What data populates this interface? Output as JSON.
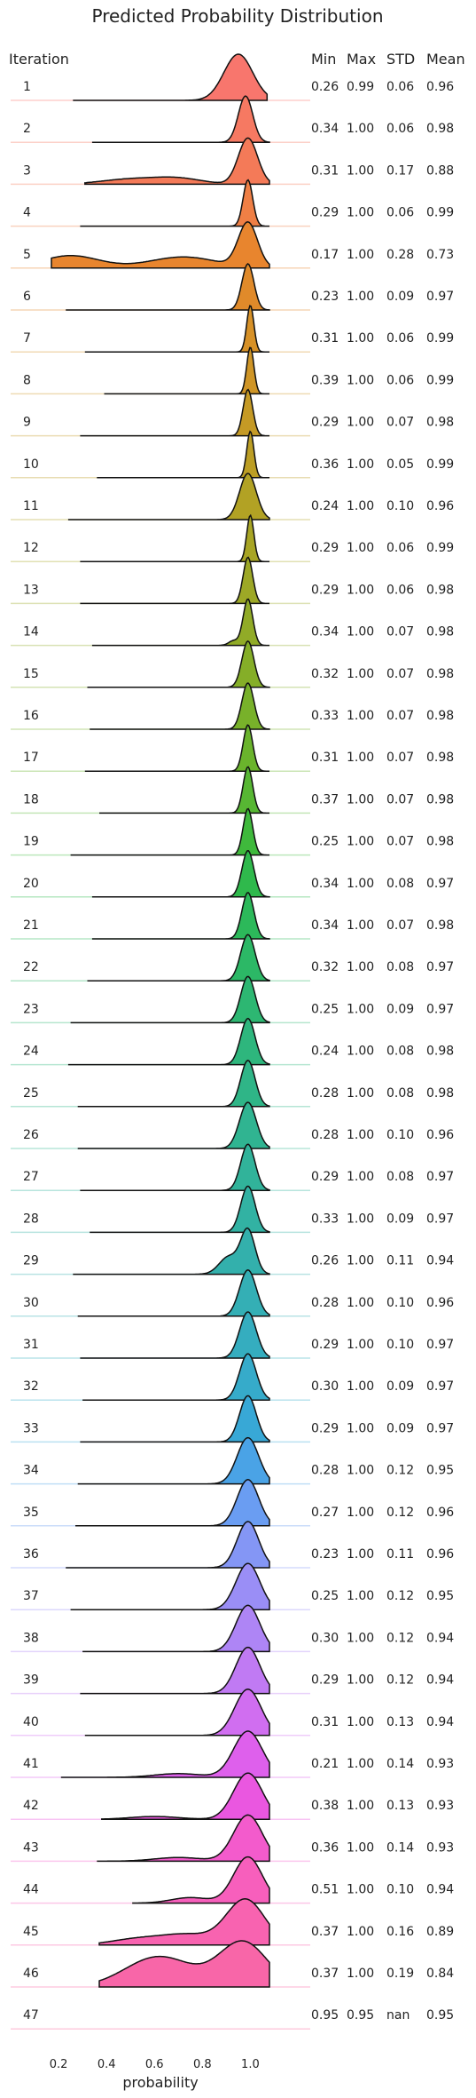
{
  "chart_data": {
    "type": "ridgeline",
    "title": "Predicted Probability Distribution",
    "row_header": "Iteration",
    "column_headers": [
      "Min",
      "Max",
      "STD",
      "Mean"
    ],
    "xlabel": "probability",
    "x_ticks": [
      "0.2",
      "0.4",
      "0.6",
      "0.8",
      "1.0"
    ],
    "xlim": [
      0.0,
      1.25
    ],
    "grid": false,
    "rows": [
      {
        "label": "1",
        "min": "0.26",
        "max": "0.99",
        "std": "0.06",
        "mean": "0.96",
        "color": "#f8766d",
        "shape": [
          [
            0.95,
            0.06,
            1.0
          ]
        ]
      },
      {
        "label": "2",
        "min": "0.34",
        "max": "1.00",
        "std": "0.06",
        "mean": "0.98",
        "color": "#f67962",
        "shape": [
          [
            0.98,
            0.03,
            1.0
          ]
        ]
      },
      {
        "label": "3",
        "min": "0.31",
        "max": "1.00",
        "std": "0.17",
        "mean": "0.88",
        "color": "#f47a58",
        "shape": [
          [
            0.99,
            0.04,
            1.0
          ],
          [
            0.5,
            0.12,
            0.11
          ],
          [
            0.7,
            0.1,
            0.12
          ]
        ]
      },
      {
        "label": "4",
        "min": "0.29",
        "max": "1.00",
        "std": "0.06",
        "mean": "0.99",
        "color": "#ef7f45",
        "shape": [
          [
            0.99,
            0.02,
            1.0
          ]
        ]
      },
      {
        "label": "5",
        "min": "0.17",
        "max": "1.00",
        "std": "0.28",
        "mean": "0.73",
        "color": "#e8852e",
        "shape": [
          [
            0.99,
            0.04,
            1.0
          ],
          [
            0.25,
            0.12,
            0.28
          ],
          [
            0.72,
            0.14,
            0.25
          ]
        ]
      },
      {
        "label": "6",
        "min": "0.23",
        "max": "1.00",
        "std": "0.09",
        "mean": "0.97",
        "color": "#e08a2a",
        "shape": [
          [
            0.99,
            0.025,
            1.0
          ]
        ]
      },
      {
        "label": "7",
        "min": "0.31",
        "max": "1.00",
        "std": "0.06",
        "mean": "0.99",
        "color": "#d79127",
        "shape": [
          [
            1.0,
            0.015,
            1.0
          ]
        ]
      },
      {
        "label": "8",
        "min": "0.39",
        "max": "1.00",
        "std": "0.06",
        "mean": "0.99",
        "color": "#cf9526",
        "shape": [
          [
            1.0,
            0.015,
            1.0
          ]
        ]
      },
      {
        "label": "9",
        "min": "0.29",
        "max": "1.00",
        "std": "0.07",
        "mean": "0.98",
        "color": "#c59a25",
        "shape": [
          [
            0.99,
            0.02,
            1.0
          ]
        ]
      },
      {
        "label": "10",
        "min": "0.36",
        "max": "1.00",
        "std": "0.05",
        "mean": "0.99",
        "color": "#bc9e24",
        "shape": [
          [
            1.0,
            0.015,
            1.0
          ]
        ]
      },
      {
        "label": "11",
        "min": "0.24",
        "max": "1.00",
        "std": "0.10",
        "mean": "0.96",
        "color": "#b2a224",
        "shape": [
          [
            0.99,
            0.035,
            1.0
          ]
        ]
      },
      {
        "label": "12",
        "min": "0.29",
        "max": "1.00",
        "std": "0.06",
        "mean": "0.99",
        "color": "#a8a524",
        "shape": [
          [
            1.0,
            0.015,
            1.0
          ]
        ]
      },
      {
        "label": "13",
        "min": "0.29",
        "max": "1.00",
        "std": "0.06",
        "mean": "0.98",
        "color": "#9da826",
        "shape": [
          [
            0.99,
            0.02,
            1.0
          ]
        ]
      },
      {
        "label": "14",
        "min": "0.34",
        "max": "1.00",
        "std": "0.07",
        "mean": "0.98",
        "color": "#91ab27",
        "shape": [
          [
            0.99,
            0.02,
            1.0
          ],
          [
            0.93,
            0.02,
            0.1
          ]
        ]
      },
      {
        "label": "15",
        "min": "0.32",
        "max": "1.00",
        "std": "0.07",
        "mean": "0.98",
        "color": "#85ae28",
        "shape": [
          [
            0.99,
            0.025,
            1.0
          ]
        ]
      },
      {
        "label": "16",
        "min": "0.33",
        "max": "1.00",
        "std": "0.07",
        "mean": "0.98",
        "color": "#78b12a",
        "shape": [
          [
            0.99,
            0.025,
            1.0
          ]
        ]
      },
      {
        "label": "17",
        "min": "0.31",
        "max": "1.00",
        "std": "0.07",
        "mean": "0.98",
        "color": "#6ab42c",
        "shape": [
          [
            0.99,
            0.02,
            1.0
          ]
        ]
      },
      {
        "label": "18",
        "min": "0.37",
        "max": "1.00",
        "std": "0.07",
        "mean": "0.98",
        "color": "#57b733",
        "shape": [
          [
            0.99,
            0.02,
            1.0
          ]
        ]
      },
      {
        "label": "19",
        "min": "0.25",
        "max": "1.00",
        "std": "0.07",
        "mean": "0.98",
        "color": "#3fb93c",
        "shape": [
          [
            0.99,
            0.02,
            1.0
          ]
        ]
      },
      {
        "label": "20",
        "min": "0.34",
        "max": "1.00",
        "std": "0.08",
        "mean": "0.97",
        "color": "#2fb94c",
        "shape": [
          [
            0.99,
            0.025,
            1.0
          ]
        ]
      },
      {
        "label": "21",
        "min": "0.34",
        "max": "1.00",
        "std": "0.07",
        "mean": "0.98",
        "color": "#2cb95a",
        "shape": [
          [
            0.99,
            0.025,
            1.0
          ]
        ]
      },
      {
        "label": "22",
        "min": "0.32",
        "max": "1.00",
        "std": "0.08",
        "mean": "0.97",
        "color": "#2cb866",
        "shape": [
          [
            0.99,
            0.03,
            1.0
          ]
        ]
      },
      {
        "label": "23",
        "min": "0.25",
        "max": "1.00",
        "std": "0.09",
        "mean": "0.97",
        "color": "#2db772",
        "shape": [
          [
            0.99,
            0.03,
            1.0
          ]
        ]
      },
      {
        "label": "24",
        "min": "0.24",
        "max": "1.00",
        "std": "0.08",
        "mean": "0.98",
        "color": "#2eb67d",
        "shape": [
          [
            0.99,
            0.03,
            1.0
          ]
        ]
      },
      {
        "label": "25",
        "min": "0.28",
        "max": "1.00",
        "std": "0.08",
        "mean": "0.98",
        "color": "#2fb587",
        "shape": [
          [
            0.99,
            0.03,
            1.0
          ]
        ]
      },
      {
        "label": "26",
        "min": "0.28",
        "max": "1.00",
        "std": "0.10",
        "mean": "0.96",
        "color": "#30b491",
        "shape": [
          [
            0.99,
            0.035,
            1.0
          ]
        ]
      },
      {
        "label": "27",
        "min": "0.29",
        "max": "1.00",
        "std": "0.08",
        "mean": "0.97",
        "color": "#31b39a",
        "shape": [
          [
            0.99,
            0.03,
            1.0
          ]
        ]
      },
      {
        "label": "28",
        "min": "0.33",
        "max": "1.00",
        "std": "0.09",
        "mean": "0.97",
        "color": "#32b2a3",
        "shape": [
          [
            0.99,
            0.03,
            1.0
          ]
        ]
      },
      {
        "label": "29",
        "min": "0.26",
        "max": "1.00",
        "std": "0.11",
        "mean": "0.94",
        "color": "#33b0ac",
        "shape": [
          [
            0.99,
            0.03,
            1.0
          ],
          [
            0.91,
            0.04,
            0.4
          ]
        ]
      },
      {
        "label": "30",
        "min": "0.28",
        "max": "1.00",
        "std": "0.10",
        "mean": "0.96",
        "color": "#34afb5",
        "shape": [
          [
            0.99,
            0.035,
            1.0
          ]
        ]
      },
      {
        "label": "31",
        "min": "0.29",
        "max": "1.00",
        "std": "0.10",
        "mean": "0.97",
        "color": "#35adbf",
        "shape": [
          [
            0.99,
            0.035,
            1.0
          ]
        ]
      },
      {
        "label": "32",
        "min": "0.30",
        "max": "1.00",
        "std": "0.09",
        "mean": "0.97",
        "color": "#36abca",
        "shape": [
          [
            0.99,
            0.035,
            1.0
          ]
        ]
      },
      {
        "label": "33",
        "min": "0.29",
        "max": "1.00",
        "std": "0.09",
        "mean": "0.97",
        "color": "#38a8d6",
        "shape": [
          [
            0.99,
            0.035,
            1.0
          ]
        ]
      },
      {
        "label": "34",
        "min": "0.28",
        "max": "1.00",
        "std": "0.12",
        "mean": "0.95",
        "color": "#4aa3e6",
        "shape": [
          [
            0.99,
            0.045,
            1.0
          ]
        ]
      },
      {
        "label": "35",
        "min": "0.27",
        "max": "1.00",
        "std": "0.12",
        "mean": "0.96",
        "color": "#6a9df2",
        "shape": [
          [
            0.99,
            0.045,
            1.0
          ]
        ]
      },
      {
        "label": "36",
        "min": "0.23",
        "max": "1.00",
        "std": "0.11",
        "mean": "0.96",
        "color": "#8496f5",
        "shape": [
          [
            0.99,
            0.045,
            1.0
          ]
        ]
      },
      {
        "label": "37",
        "min": "0.25",
        "max": "1.00",
        "std": "0.12",
        "mean": "0.95",
        "color": "#9a8ef6",
        "shape": [
          [
            0.99,
            0.05,
            1.0
          ]
        ]
      },
      {
        "label": "38",
        "min": "0.30",
        "max": "1.00",
        "std": "0.12",
        "mean": "0.94",
        "color": "#ae85f5",
        "shape": [
          [
            0.99,
            0.05,
            1.0
          ]
        ]
      },
      {
        "label": "39",
        "min": "0.29",
        "max": "1.00",
        "std": "0.12",
        "mean": "0.94",
        "color": "#c07af3",
        "shape": [
          [
            0.99,
            0.05,
            1.0
          ]
        ]
      },
      {
        "label": "40",
        "min": "0.31",
        "max": "1.00",
        "std": "0.13",
        "mean": "0.94",
        "color": "#d06ef0",
        "shape": [
          [
            0.99,
            0.055,
            1.0
          ]
        ]
      },
      {
        "label": "41",
        "min": "0.21",
        "max": "1.00",
        "std": "0.14",
        "mean": "0.93",
        "color": "#de60ec",
        "shape": [
          [
            0.99,
            0.06,
            1.0
          ],
          [
            0.7,
            0.1,
            0.08
          ]
        ]
      },
      {
        "label": "42",
        "min": "0.38",
        "max": "1.00",
        "std": "0.13",
        "mean": "0.93",
        "color": "#ea57e0",
        "shape": [
          [
            0.99,
            0.06,
            1.0
          ],
          [
            0.6,
            0.1,
            0.06
          ]
        ]
      },
      {
        "label": "43",
        "min": "0.36",
        "max": "1.00",
        "std": "0.14",
        "mean": "0.93",
        "color": "#f35bcc",
        "shape": [
          [
            0.99,
            0.06,
            1.0
          ],
          [
            0.7,
            0.1,
            0.08
          ]
        ]
      },
      {
        "label": "44",
        "min": "0.51",
        "max": "1.00",
        "std": "0.10",
        "mean": "0.94",
        "color": "#f75fbc",
        "shape": [
          [
            0.99,
            0.06,
            1.0
          ],
          [
            0.75,
            0.08,
            0.12
          ]
        ]
      },
      {
        "label": "45",
        "min": "0.37",
        "max": "1.00",
        "std": "0.16",
        "mean": "0.89",
        "color": "#f863b0",
        "shape": [
          [
            0.98,
            0.08,
            1.0
          ],
          [
            0.55,
            0.12,
            0.15
          ],
          [
            0.75,
            0.1,
            0.2
          ]
        ]
      },
      {
        "label": "46",
        "min": "0.37",
        "max": "1.00",
        "std": "0.19",
        "mean": "0.84",
        "color": "#f866a8",
        "shape": [
          [
            0.97,
            0.1,
            1.0
          ],
          [
            0.62,
            0.14,
            0.68
          ]
        ]
      },
      {
        "label": "47",
        "min": "0.95",
        "max": "0.95",
        "std": "nan",
        "mean": "0.95",
        "color": "#f8699f",
        "shape": []
      }
    ]
  }
}
